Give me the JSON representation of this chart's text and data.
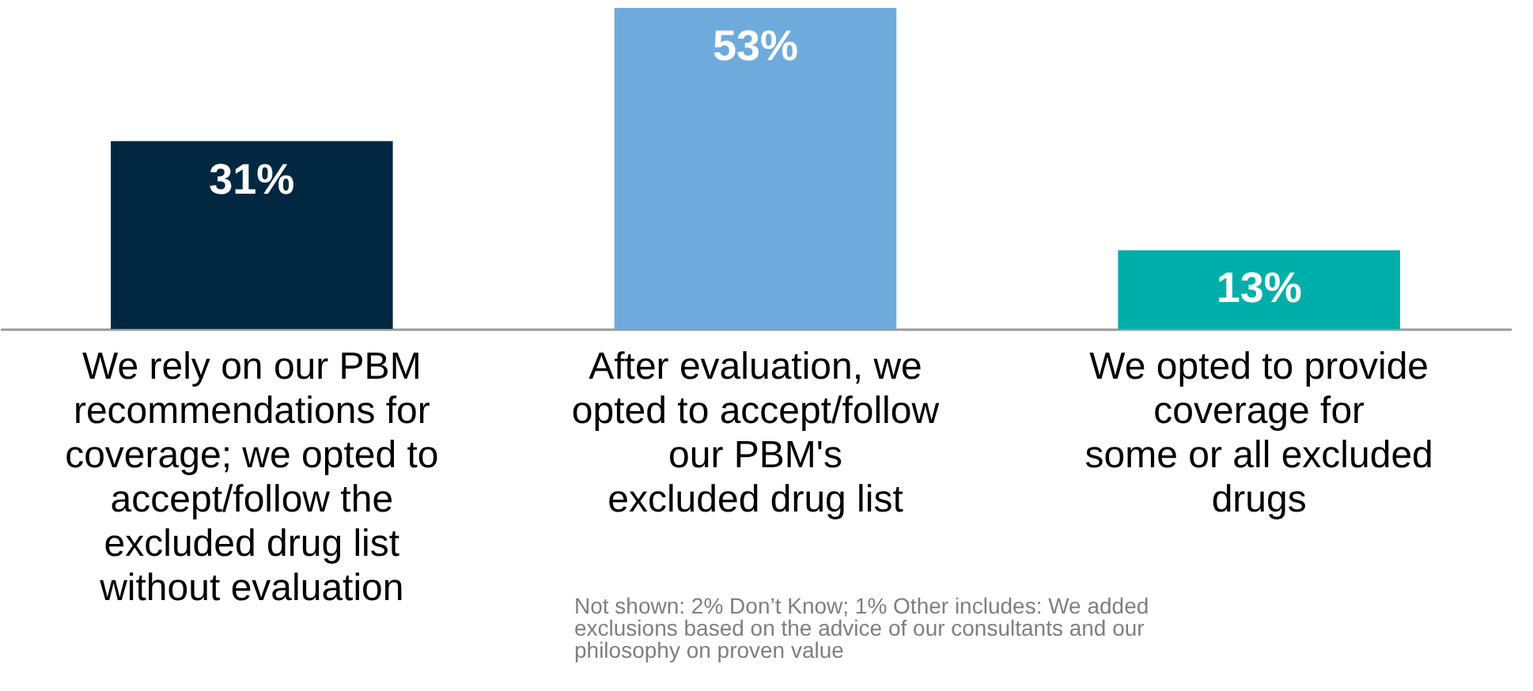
{
  "chart_data": {
    "type": "bar",
    "categories": [
      "We rely on our PBM\nrecommendations for\ncoverage; we opted to\naccept/follow the\nexcluded drug list\nwithout evaluation",
      "After evaluation, we\nopted to accept/follow\nour PBM's\nexcluded drug list",
      "We opted to provide\ncoverage for\nsome or all excluded\ndrugs"
    ],
    "values": [
      31,
      53,
      13
    ],
    "colors": [
      "#012840",
      "#6eabdc",
      "#00aea9"
    ],
    "value_labels": [
      "31%",
      "53%",
      "13%"
    ],
    "annotations": [
      "Not shown: 2% Don’t Know; 1% Other includes: We added exclusions based on the advice of our consultants and our philosophy on proven value"
    ]
  }
}
